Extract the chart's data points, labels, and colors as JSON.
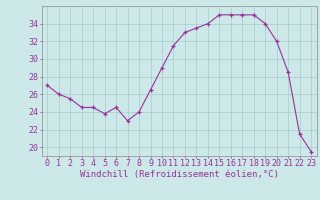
{
  "x": [
    0,
    1,
    2,
    3,
    4,
    5,
    6,
    7,
    8,
    9,
    10,
    11,
    12,
    13,
    14,
    15,
    16,
    17,
    18,
    19,
    20,
    21,
    22,
    23
  ],
  "y": [
    27,
    26,
    25.5,
    24.5,
    24.5,
    23.8,
    24.5,
    23,
    24,
    26.5,
    29,
    31.5,
    33,
    33.5,
    34,
    35,
    35,
    35,
    35,
    34,
    32,
    28.5,
    21.5,
    19.5
  ],
  "line_color": "#993399",
  "marker_color": "#993399",
  "bg_color": "#cce8e8",
  "grid_color": "#aacccc",
  "xlabel": "Windchill (Refroidissement éolien,°C)",
  "ylim": [
    19,
    36
  ],
  "xlim": [
    -0.5,
    23.5
  ],
  "yticks": [
    20,
    22,
    24,
    26,
    28,
    30,
    32,
    34
  ],
  "xticks": [
    0,
    1,
    2,
    3,
    4,
    5,
    6,
    7,
    8,
    9,
    10,
    11,
    12,
    13,
    14,
    15,
    16,
    17,
    18,
    19,
    20,
    21,
    22,
    23
  ],
  "label_color": "#993399",
  "label_fontsize": 6.5,
  "tick_fontsize": 6,
  "spine_color": "#999999"
}
